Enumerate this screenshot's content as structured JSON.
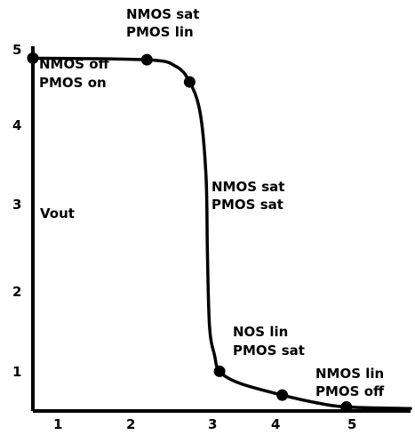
{
  "chart_data": {
    "type": "line",
    "title": "",
    "xlabel": "",
    "ylabel": "Vout",
    "xlim": [
      0.5,
      5.8
    ],
    "ylim": [
      0.55,
      5.15
    ],
    "x_ticks": [
      "1",
      "2",
      "3",
      "4",
      "5"
    ],
    "y_ticks": [
      "5",
      "4",
      "3",
      "2",
      "1"
    ],
    "grid": false,
    "curve": [
      {
        "x": 0.5,
        "y": 5.0
      },
      {
        "x": 2.1,
        "y": 4.98
      },
      {
        "x": 2.5,
        "y": 4.9
      },
      {
        "x": 2.7,
        "y": 4.7
      },
      {
        "x": 2.85,
        "y": 4.3
      },
      {
        "x": 2.93,
        "y": 3.5
      },
      {
        "x": 2.95,
        "y": 2.5
      },
      {
        "x": 2.98,
        "y": 1.6
      },
      {
        "x": 3.05,
        "y": 1.25
      },
      {
        "x": 3.12,
        "y": 1.05
      },
      {
        "x": 3.4,
        "y": 0.9
      },
      {
        "x": 4.0,
        "y": 0.75
      },
      {
        "x": 4.5,
        "y": 0.65
      },
      {
        "x": 4.9,
        "y": 0.6
      },
      {
        "x": 5.8,
        "y": 0.58
      }
    ],
    "markers": [
      {
        "x": 0.5,
        "y": 5.0
      },
      {
        "x": 2.1,
        "y": 4.98
      },
      {
        "x": 2.7,
        "y": 4.7
      },
      {
        "x": 3.12,
        "y": 1.05
      },
      {
        "x": 4.0,
        "y": 0.75
      },
      {
        "x": 4.9,
        "y": 0.6
      }
    ],
    "annotations": [
      {
        "line1": "NMOS sat",
        "line2": "PMOS lin"
      },
      {
        "line1": "NMOS off",
        "line2": "PMOS on"
      },
      {
        "line1": "NMOS sat",
        "line2": "PMOS sat"
      },
      {
        "line1": "NOS lin",
        "line2": "PMOS sat"
      },
      {
        "line1": "NMOS lin",
        "line2": "PMOS off"
      }
    ],
    "colors": {
      "line": "#000000",
      "marker": "#000000",
      "background": "#ffffff"
    }
  }
}
